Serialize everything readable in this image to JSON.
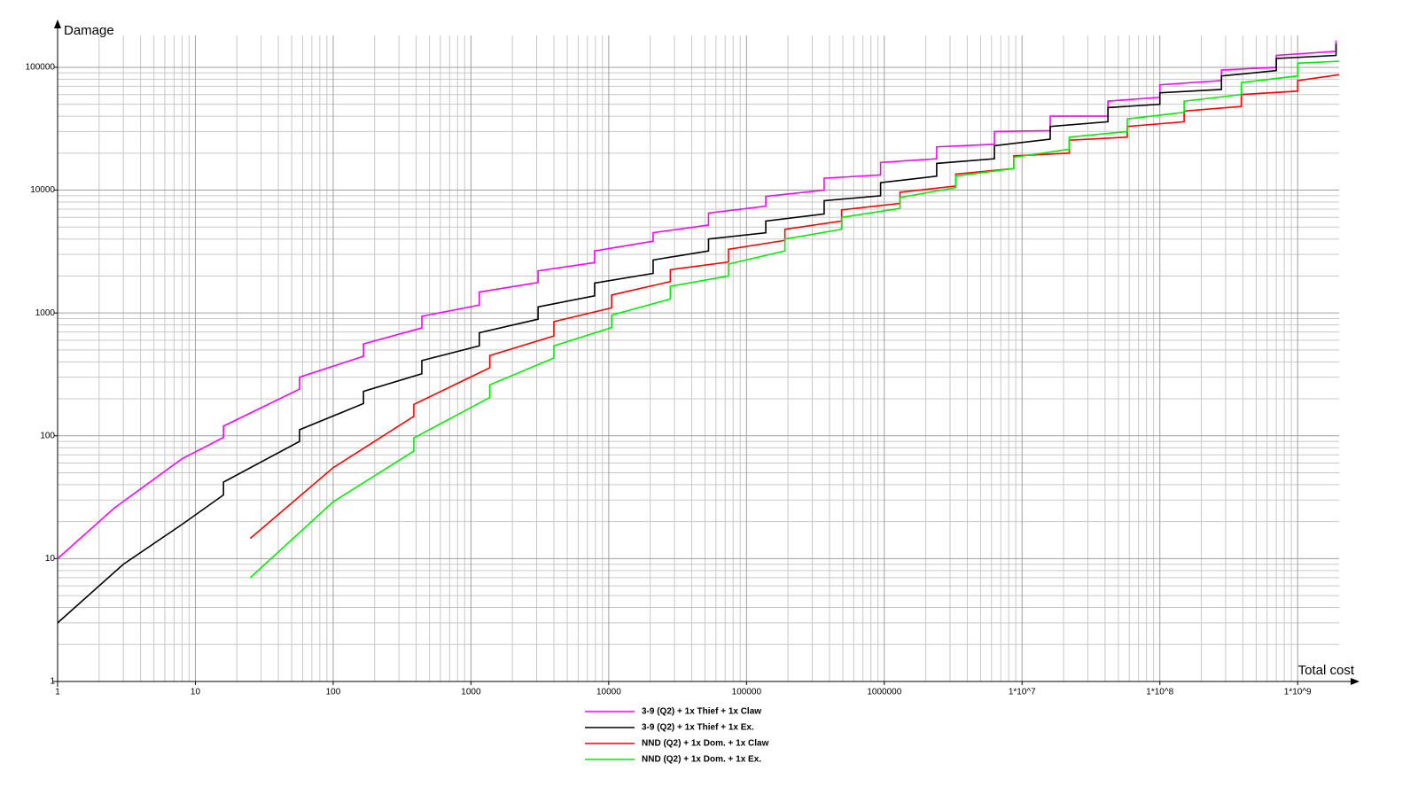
{
  "chart_data": {
    "type": "line",
    "y_label": "Damage",
    "x_label": "Total cost",
    "xscale": "log",
    "yscale": "log",
    "grid": true,
    "minor_grid": true,
    "legend": "bottom",
    "xlim": [
      1,
      2000000000
    ],
    "ylim": [
      1,
      170000
    ],
    "xticks": [
      1,
      10,
      100,
      1000,
      10000,
      100000,
      1000000,
      {
        "value": 10000000,
        "label": "1*10^7"
      },
      {
        "value": 100000000,
        "label": "1*10^8"
      },
      {
        "value": 1000000000,
        "label": "1*10^9"
      }
    ],
    "yticks": [
      1,
      10,
      100,
      1000,
      10000,
      100000
    ],
    "series": [
      {
        "name": "3-9 (Q2) + 1x Thief + 1x Claw",
        "color": "#ff00ff",
        "x": [
          1,
          2.6,
          8,
          16,
          16,
          57,
          57,
          166,
          166,
          440,
          440,
          1150,
          1150,
          3070,
          3070,
          7900,
          7900,
          21000,
          21000,
          53000,
          53000,
          138000,
          138000,
          366000,
          366000,
          940000,
          940000,
          2400000,
          2400000,
          6300000,
          6300000,
          16000000,
          16000000,
          42000000,
          42000000,
          100000000,
          100000000,
          280000000,
          280000000,
          700000000,
          700000000,
          1900000000,
          1900000000
        ],
        "values": [
          10,
          26,
          65,
          97,
          120,
          240,
          300,
          444,
          560,
          755,
          940,
          1160,
          1480,
          1770,
          2200,
          2570,
          3200,
          3840,
          4500,
          5200,
          6500,
          7400,
          8900,
          10000,
          12500,
          13300,
          16800,
          18000,
          22500,
          23600,
          30000,
          30500,
          40000,
          40000,
          53000,
          57000,
          72000,
          78000,
          95000,
          100000,
          125000,
          135000,
          165000
        ]
      },
      {
        "name": "3-9 (Q2) + 1x Thief + 1x Ex.",
        "color": "#000000",
        "x": [
          1,
          3,
          8,
          16,
          16,
          57,
          57,
          166,
          166,
          440,
          440,
          1150,
          1150,
          3070,
          3070,
          7900,
          7900,
          21000,
          21000,
          53000,
          53000,
          138000,
          138000,
          366000,
          366000,
          940000,
          940000,
          2400000,
          2400000,
          6300000,
          6300000,
          16000000,
          16000000,
          42000000,
          42000000,
          100000000,
          100000000,
          280000000,
          280000000,
          700000000,
          700000000,
          1900000000,
          1900000000
        ],
        "values": [
          3,
          9,
          19,
          33,
          42,
          90,
          112,
          183,
          230,
          320,
          410,
          540,
          690,
          890,
          1120,
          1380,
          1750,
          2100,
          2700,
          3200,
          4000,
          4500,
          5600,
          6400,
          8200,
          9000,
          11500,
          13000,
          16500,
          18000,
          23000,
          26000,
          33000,
          36000,
          47000,
          50000,
          62000,
          66000,
          85000,
          94000,
          118000,
          125000,
          155000
        ]
      },
      {
        "name": "NND (Q2) + 1x Dom. + 1x Claw",
        "color": "#ff0000",
        "x": [
          25,
          100,
          385,
          385,
          1370,
          1370,
          4000,
          4000,
          10500,
          10500,
          28000,
          28000,
          74000,
          74000,
          190000,
          190000,
          490000,
          490000,
          1300000,
          1300000,
          3300000,
          3300000,
          8700000,
          8700000,
          22000000,
          22000000,
          58000000,
          58000000,
          150000000,
          150000000,
          390000000,
          390000000,
          1000000000,
          1000000000,
          2000000000
        ],
        "values": [
          14.6,
          55,
          144,
          180,
          358,
          450,
          650,
          850,
          1100,
          1400,
          1800,
          2250,
          2600,
          3300,
          3900,
          4800,
          5600,
          6900,
          7800,
          9600,
          10800,
          13500,
          15000,
          19000,
          20000,
          25500,
          27000,
          33000,
          36000,
          44000,
          48000,
          60000,
          64000,
          78000,
          87000
        ]
      },
      {
        "name": "NND (Q2) + 1x Dom. + 1x Ex.",
        "color": "#00ee00",
        "x": [
          25,
          100,
          385,
          385,
          1370,
          1370,
          4000,
          4000,
          10500,
          10500,
          28000,
          28000,
          74000,
          74000,
          190000,
          190000,
          490000,
          490000,
          1300000,
          1300000,
          3300000,
          3300000,
          8700000,
          8700000,
          22000000,
          22000000,
          58000000,
          58000000,
          150000000,
          150000000,
          390000000,
          390000000,
          1000000000,
          1000000000,
          2000000000
        ],
        "values": [
          7,
          29,
          75,
          96,
          205,
          260,
          430,
          540,
          760,
          960,
          1300,
          1650,
          2000,
          2500,
          3200,
          4000,
          4800,
          6000,
          7100,
          8700,
          10500,
          13000,
          15000,
          18500,
          21500,
          27000,
          30000,
          38000,
          43000,
          53000,
          60000,
          75000,
          85000,
          108000,
          112000
        ]
      }
    ]
  }
}
